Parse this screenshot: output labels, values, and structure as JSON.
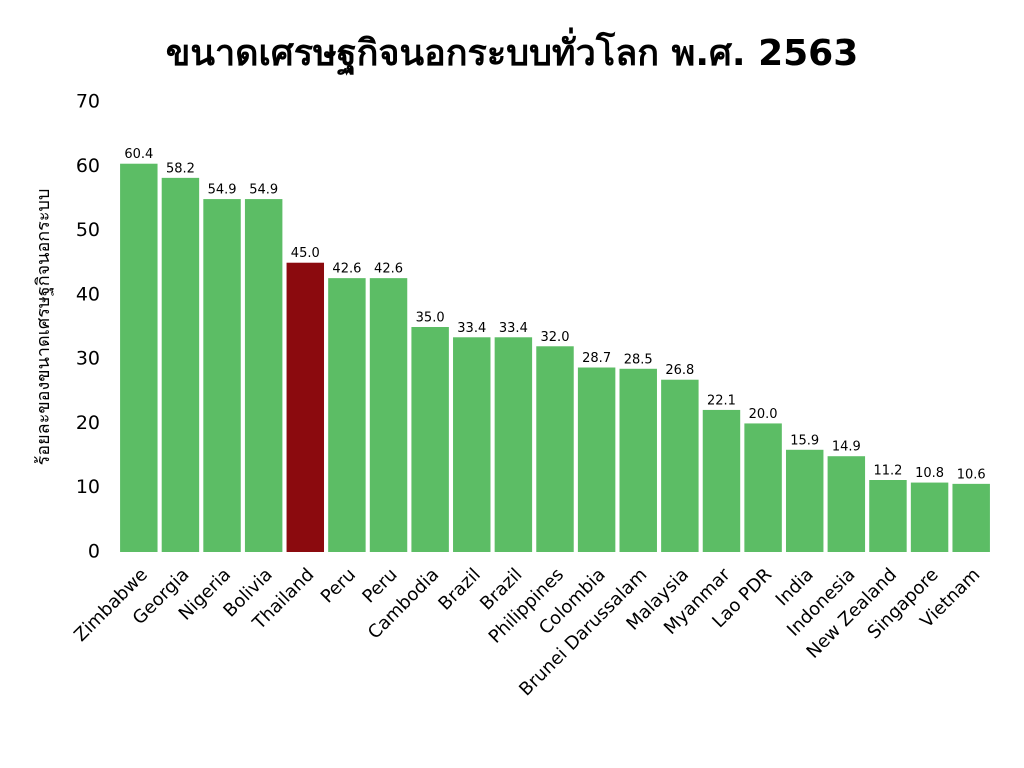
{
  "chart_data": {
    "type": "bar",
    "title": "ขนาดเศรษฐกิจนอกระบบทั่วโลก พ.ศ. 2563",
    "y_label": "ร้อยละของขนาดเศรษฐกิจนอกระบบ",
    "categories": [
      "Zimbabwe",
      "Georgia",
      "Nigeria",
      "Bolivia",
      "Thailand",
      "Peru",
      "Peru",
      "Cambodia",
      "Brazil",
      "Brazil",
      "Philippines",
      "Colombia",
      "Brunei Darussalam",
      "Malaysia",
      "Myanmar",
      "Lao PDR",
      "India",
      "Indonesia",
      "New Zealand",
      "Singapore",
      "Vietnam"
    ],
    "values": [
      60.4,
      58.2,
      54.9,
      54.9,
      45.0,
      42.6,
      42.6,
      35.0,
      33.4,
      33.4,
      32.0,
      28.7,
      28.5,
      26.8,
      22.1,
      20.0,
      15.9,
      14.9,
      11.2,
      10.8,
      10.6
    ],
    "value_labels": [
      "60.4",
      "58.2",
      "54.9",
      "54.9",
      "45.0",
      "42.6",
      "42.6",
      "35.0",
      "33.4",
      "33.4",
      "32.0",
      "28.7",
      "28.5",
      "26.8",
      "22.1",
      "20.0",
      "15.9",
      "14.9",
      "11.2",
      "10.8",
      "10.6"
    ],
    "colors": [
      "#5cbd65",
      "#5cbd65",
      "#5cbd65",
      "#5cbd65",
      "#8b0a0e",
      "#5cbd65",
      "#5cbd65",
      "#5cbd65",
      "#5cbd65",
      "#5cbd65",
      "#5cbd65",
      "#5cbd65",
      "#5cbd65",
      "#5cbd65",
      "#5cbd65",
      "#5cbd65",
      "#5cbd65",
      "#5cbd65",
      "#5cbd65",
      "#5cbd65",
      "#5cbd65"
    ],
    "ylim": [
      0,
      70
    ],
    "yticks": [
      0,
      10,
      20,
      30,
      40,
      50,
      60,
      70
    ],
    "grid": false
  }
}
